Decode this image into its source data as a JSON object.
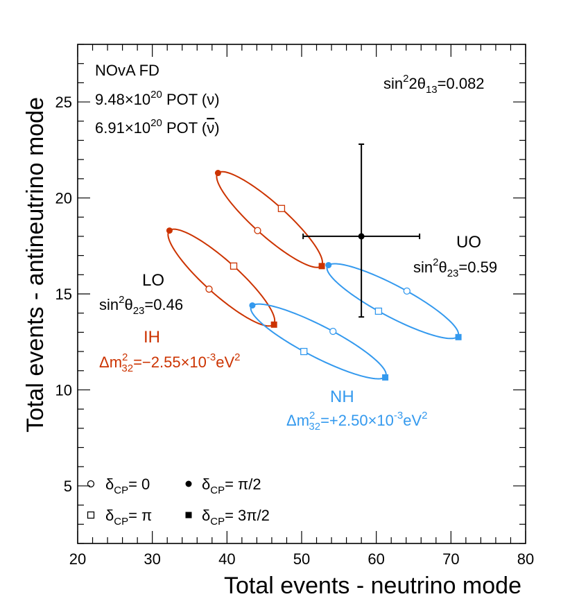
{
  "chart_data": {
    "type": "scatter",
    "title": "",
    "xlabel": "Total events - neutrino mode",
    "ylabel": "Total events - antineutrino mode",
    "xlim": [
      20,
      80
    ],
    "ylim": [
      2,
      28
    ],
    "x_ticks": [
      20,
      30,
      40,
      50,
      60,
      70,
      80
    ],
    "y_ticks": [
      5,
      10,
      15,
      20,
      25
    ],
    "info_text": {
      "line1": "NOvA FD",
      "line2_main": "9.48×10",
      "line2_exp": "20",
      "line2_rest": " POT (ν)",
      "line3_main": "6.91×10",
      "line3_exp": "20",
      "line3_rest": " POT (",
      "line3_nu": "ν",
      "line3_end": ")"
    },
    "param_sin13": {
      "pre": "sin",
      "sup": "2",
      "mid": "2θ",
      "sub": "13",
      "post": "=0.082"
    },
    "labels": {
      "lo": "LO",
      "lo_sin_pre": "sin",
      "lo_sin_sup": "2",
      "lo_sin_mid": "θ",
      "lo_sin_sub": "23",
      "lo_sin_post": "=0.46",
      "uo": "UO",
      "uo_sin_pre": "sin",
      "uo_sin_sup": "2",
      "uo_sin_mid": "θ",
      "uo_sin_sub": "23",
      "uo_sin_post": "=0.59",
      "ih": "IH",
      "ih_dm_pre": "Δm",
      "ih_dm_sup": "2",
      "ih_dm_sub": "32",
      "ih_dm_post": "=−2.55×10",
      "ih_dm_exp": "-3",
      "ih_dm_unit": "eV",
      "ih_dm_unit_sup": "2",
      "nh": "NH",
      "nh_dm_pre": "Δm",
      "nh_dm_sup": "2",
      "nh_dm_sub": "32",
      "nh_dm_post": "=+2.50×10",
      "nh_dm_exp": "-3",
      "nh_dm_unit": "eV",
      "nh_dm_unit_sup": "2"
    },
    "legend": {
      "placement": "bottom-left",
      "items": [
        {
          "marker": "open-circle",
          "delta": "δ",
          "sub": "CP",
          "value": "= 0"
        },
        {
          "marker": "filled-circle",
          "delta": "δ",
          "sub": "CP",
          "value": "= π/2"
        },
        {
          "marker": "open-square",
          "delta": "δ",
          "sub": "CP",
          "value": "= π"
        },
        {
          "marker": "filled-square",
          "delta": "δ",
          "sub": "CP",
          "value": "= 3π/2"
        }
      ]
    },
    "colors": {
      "ih": "#cc3300",
      "nh": "#3399ee",
      "data": "#000000"
    },
    "ellipses": [
      {
        "name": "IH LO",
        "color": "ih",
        "points": {
          "d0": [
            37.6,
            15.25
          ],
          "dpi2": [
            32.3,
            18.3
          ],
          "dpi": [
            40.9,
            16.45
          ],
          "d3pi2": [
            46.3,
            13.4
          ]
        }
      },
      {
        "name": "IH UO",
        "color": "ih",
        "points": {
          "d0": [
            44.1,
            18.3
          ],
          "dpi2": [
            38.8,
            21.3
          ],
          "dpi": [
            47.3,
            19.45
          ],
          "d3pi2": [
            52.7,
            16.45
          ]
        }
      },
      {
        "name": "NH LO",
        "color": "nh",
        "points": {
          "d0": [
            54.2,
            13.05
          ],
          "dpi2": [
            43.4,
            14.4
          ],
          "dpi": [
            50.3,
            12.0
          ],
          "d3pi2": [
            61.2,
            10.65
          ]
        }
      },
      {
        "name": "NH UO",
        "color": "nh",
        "points": {
          "d0": [
            64.1,
            15.15
          ],
          "dpi2": [
            53.6,
            16.5
          ],
          "dpi": [
            60.3,
            14.1
          ],
          "d3pi2": [
            71.0,
            12.75
          ]
        }
      }
    ],
    "data_point": {
      "x": 58.0,
      "y": 18.0,
      "x_err": [
        50.2,
        65.8
      ],
      "y_err": [
        13.8,
        22.8
      ]
    }
  }
}
